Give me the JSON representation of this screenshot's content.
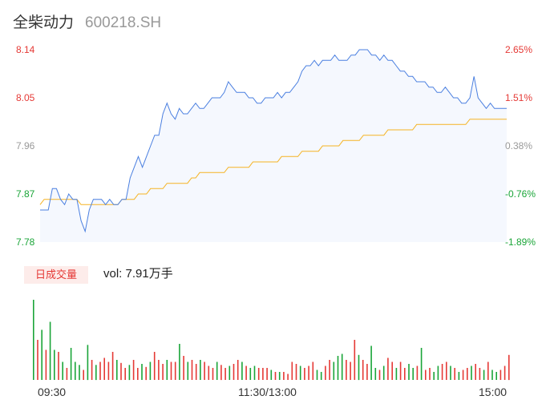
{
  "header": {
    "name": "全柴动力",
    "code": "600218.SH"
  },
  "colors": {
    "up": "#e53935",
    "down": "#1aa538",
    "neutral": "#999999",
    "price_line": "#4a7fe0",
    "avg_line": "#f5b323",
    "area_fill": "#f5f8fe"
  },
  "chart_data": [
    {
      "type": "line",
      "title": "",
      "x_labels": [
        "09:30",
        "11:30/13:00",
        "15:00"
      ],
      "y_ticks_left": [
        "8.14",
        "8.05",
        "7.96",
        "7.87",
        "7.78"
      ],
      "y_ticks_right": [
        "2.65%",
        "1.51%",
        "0.38%",
        "-0.76%",
        "-1.89%"
      ],
      "ylim": [
        7.78,
        8.14
      ],
      "series": [
        {
          "role": "price",
          "values": [
            7.84,
            7.84,
            7.84,
            7.88,
            7.88,
            7.86,
            7.85,
            7.87,
            7.86,
            7.86,
            7.82,
            7.8,
            7.84,
            7.86,
            7.86,
            7.86,
            7.85,
            7.86,
            7.85,
            7.85,
            7.86,
            7.86,
            7.9,
            7.92,
            7.94,
            7.92,
            7.94,
            7.96,
            7.98,
            7.98,
            8.02,
            8.04,
            8.02,
            8.01,
            8.03,
            8.02,
            8.02,
            8.03,
            8.04,
            8.03,
            8.03,
            8.04,
            8.05,
            8.05,
            8.05,
            8.06,
            8.08,
            8.07,
            8.06,
            8.06,
            8.06,
            8.05,
            8.05,
            8.04,
            8.04,
            8.05,
            8.05,
            8.05,
            8.06,
            8.05,
            8.06,
            8.06,
            8.07,
            8.08,
            8.1,
            8.11,
            8.11,
            8.12,
            8.11,
            8.12,
            8.12,
            8.12,
            8.13,
            8.12,
            8.12,
            8.12,
            8.13,
            8.13,
            8.14,
            8.14,
            8.14,
            8.13,
            8.13,
            8.12,
            8.13,
            8.12,
            8.12,
            8.11,
            8.1,
            8.1,
            8.09,
            8.09,
            8.08,
            8.08,
            8.08,
            8.07,
            8.07,
            8.06,
            8.06,
            8.07,
            8.06,
            8.05,
            8.05,
            8.04,
            8.04,
            8.05,
            8.09,
            8.05,
            8.04,
            8.03,
            8.04,
            8.03,
            8.03,
            8.03,
            8.03
          ]
        },
        {
          "role": "average",
          "values": [
            7.85,
            7.86,
            7.86,
            7.86,
            7.86,
            7.86,
            7.86,
            7.86,
            7.86,
            7.86,
            7.85,
            7.85,
            7.85,
            7.85,
            7.85,
            7.85,
            7.85,
            7.85,
            7.85,
            7.85,
            7.86,
            7.86,
            7.86,
            7.86,
            7.87,
            7.87,
            7.87,
            7.88,
            7.88,
            7.88,
            7.88,
            7.89,
            7.89,
            7.89,
            7.89,
            7.89,
            7.89,
            7.9,
            7.9,
            7.91,
            7.91,
            7.91,
            7.91,
            7.91,
            7.91,
            7.91,
            7.92,
            7.92,
            7.92,
            7.92,
            7.92,
            7.92,
            7.93,
            7.93,
            7.93,
            7.93,
            7.93,
            7.93,
            7.93,
            7.94,
            7.94,
            7.94,
            7.94,
            7.94,
            7.95,
            7.95,
            7.95,
            7.95,
            7.95,
            7.96,
            7.96,
            7.96,
            7.96,
            7.96,
            7.97,
            7.97,
            7.97,
            7.97,
            7.97,
            7.98,
            7.98,
            7.98,
            7.98,
            7.98,
            7.98,
            7.99,
            7.99,
            7.99,
            7.99,
            7.99,
            7.99,
            7.99,
            8.0,
            8.0,
            8.0,
            8.0,
            8.0,
            8.0,
            8.0,
            8.0,
            8.0,
            8.0,
            8.0,
            8.0,
            8.0,
            8.01,
            8.01,
            8.01,
            8.01,
            8.01,
            8.01,
            8.01,
            8.01,
            8.01,
            8.01
          ]
        }
      ]
    },
    {
      "type": "bar",
      "title": "日成交量",
      "annotation": "vol: 7.91万手",
      "volumes": [
        80,
        40,
        50,
        30,
        58,
        30,
        28,
        18,
        12,
        32,
        18,
        15,
        10,
        35,
        20,
        15,
        18,
        22,
        18,
        28,
        20,
        17,
        12,
        15,
        20,
        12,
        16,
        13,
        18,
        28,
        20,
        16,
        20,
        18,
        18,
        36,
        24,
        18,
        20,
        16,
        20,
        18,
        14,
        12,
        18,
        15,
        12,
        14,
        16,
        20,
        18,
        14,
        12,
        14,
        12,
        12,
        12,
        10,
        8,
        8,
        8,
        6,
        18,
        16,
        14,
        12,
        14,
        18,
        10,
        8,
        14,
        20,
        18,
        24,
        26,
        20,
        18,
        40,
        25,
        20,
        16,
        34,
        12,
        10,
        14,
        22,
        18,
        12,
        18,
        12,
        16,
        12,
        14,
        32,
        10,
        12,
        8,
        14,
        16,
        18,
        14,
        12,
        8,
        10,
        12,
        14,
        16,
        12,
        10,
        18,
        10,
        8,
        10,
        14,
        25
      ],
      "up_flags": [
        0,
        1,
        0,
        1,
        0,
        0,
        1,
        0,
        1,
        0,
        0,
        0,
        1,
        0,
        1,
        0,
        1,
        1,
        1,
        1,
        0,
        1,
        1,
        0,
        1,
        1,
        0,
        1,
        0,
        1,
        1,
        1,
        0,
        1,
        1,
        0,
        1,
        0,
        1,
        1,
        0,
        1,
        1,
        1,
        0,
        1,
        1,
        0,
        1,
        1,
        0,
        1,
        0,
        0,
        1,
        1,
        1,
        0,
        1,
        0,
        1,
        1,
        1,
        1,
        0,
        1,
        1,
        1,
        0,
        0,
        1,
        1,
        0,
        0,
        0,
        1,
        1,
        1,
        0,
        1,
        1,
        0,
        0,
        1,
        0,
        1,
        1,
        0,
        1,
        1,
        0,
        0,
        1,
        0,
        1,
        1,
        0,
        0,
        1,
        1,
        0,
        1,
        0,
        1,
        1,
        0,
        1,
        1,
        0,
        1,
        0,
        0,
        1,
        1,
        1
      ]
    }
  ]
}
